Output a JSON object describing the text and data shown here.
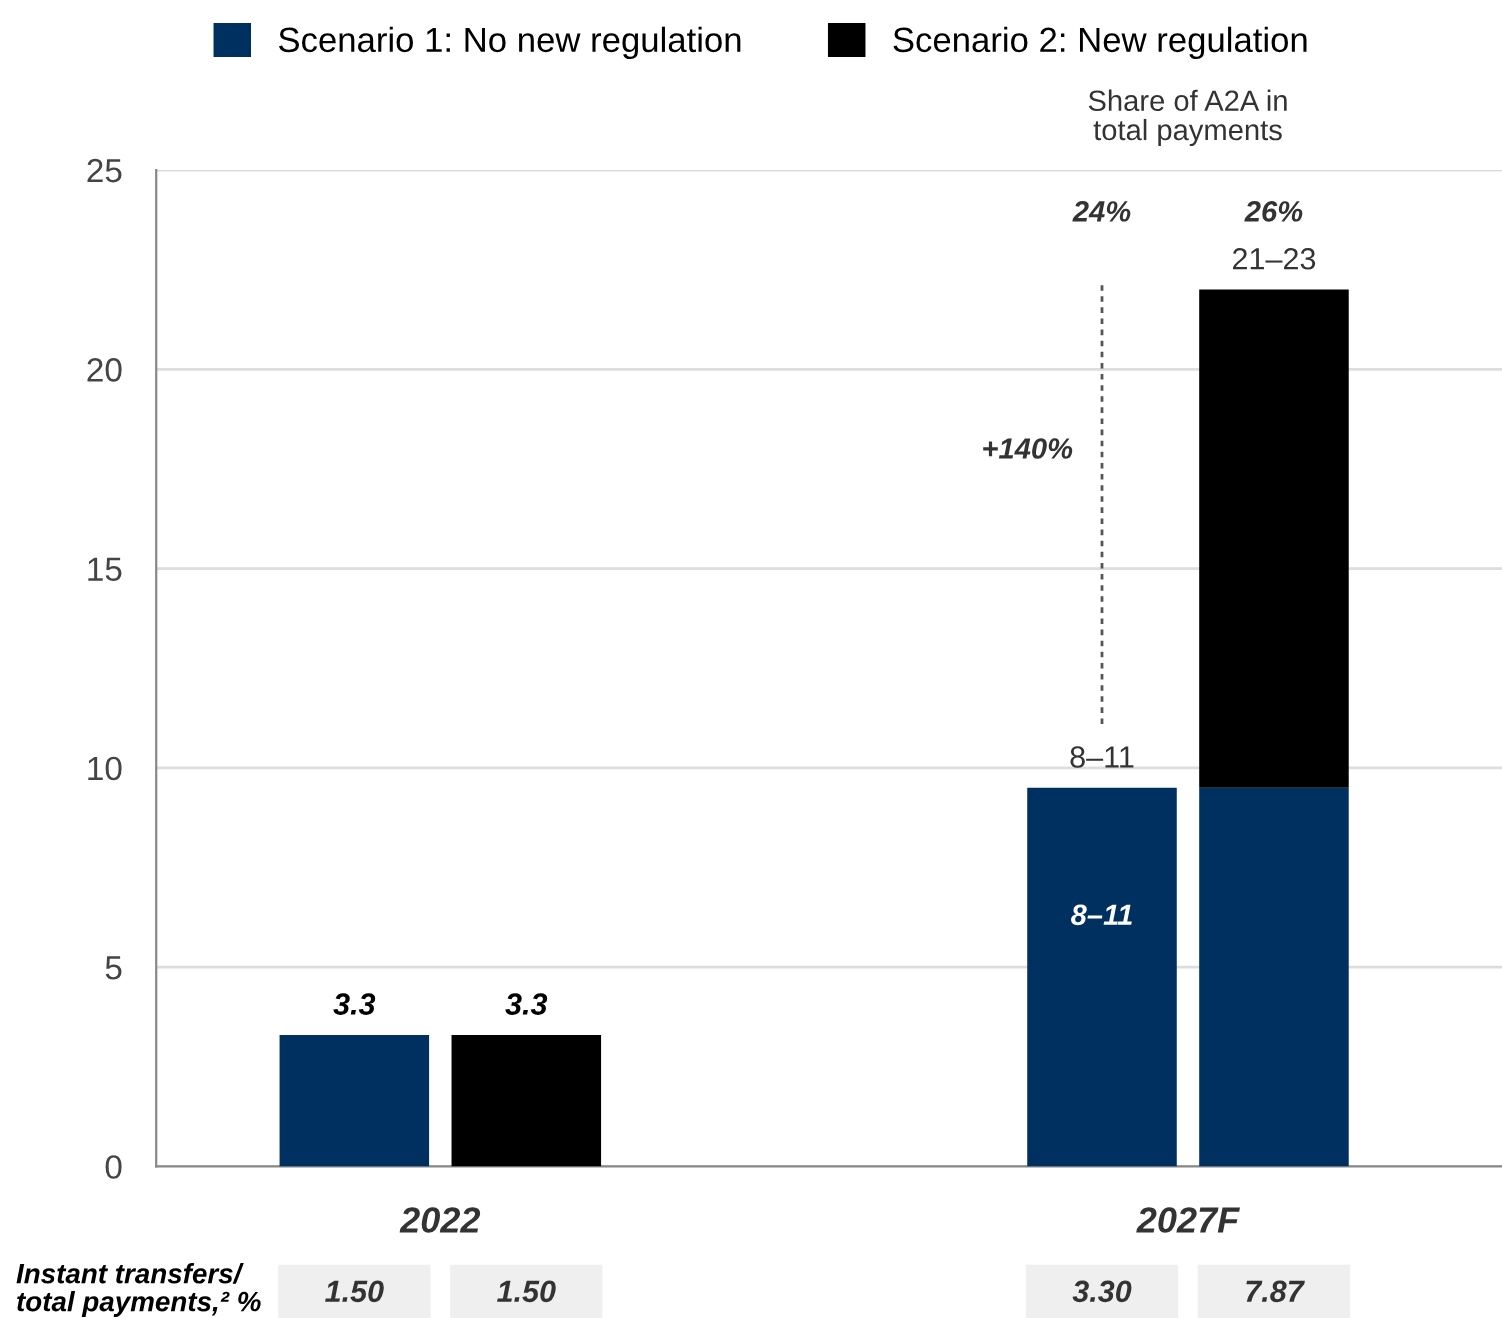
{
  "chart_data": {
    "type": "bar",
    "categories": [
      "2022",
      "2027F"
    ],
    "series": [
      {
        "name": "Scenario 1: No new regulation",
        "color": "#00305f",
        "values": [
          3.3,
          9.5
        ],
        "value_labels": [
          "3.3",
          "8–11"
        ]
      },
      {
        "color": "#00305f",
        "values": [
          null,
          9.5
        ],
        "base": [
          null,
          0
        ]
      },
      {
        "name": "Scenario 2: New regulation",
        "color": "#000000",
        "values": [
          3.3,
          12.5
        ],
        "base": [
          0,
          9.5
        ],
        "value_labels": [
          "3.3",
          "21–23"
        ]
      }
    ],
    "ylim": [
      0,
      25
    ],
    "yticks": [
      0,
      5,
      10,
      15,
      20,
      25
    ],
    "grid": "y",
    "legend": "top",
    "annotations": [
      "Share of A2A in\ntotal payments",
      "24%",
      "26%",
      "+140%",
      "8–11",
      "Instant transfers/\ntotal payments,² %",
      "1.50",
      "1.50",
      "3.30",
      "7.87"
    ]
  }
}
